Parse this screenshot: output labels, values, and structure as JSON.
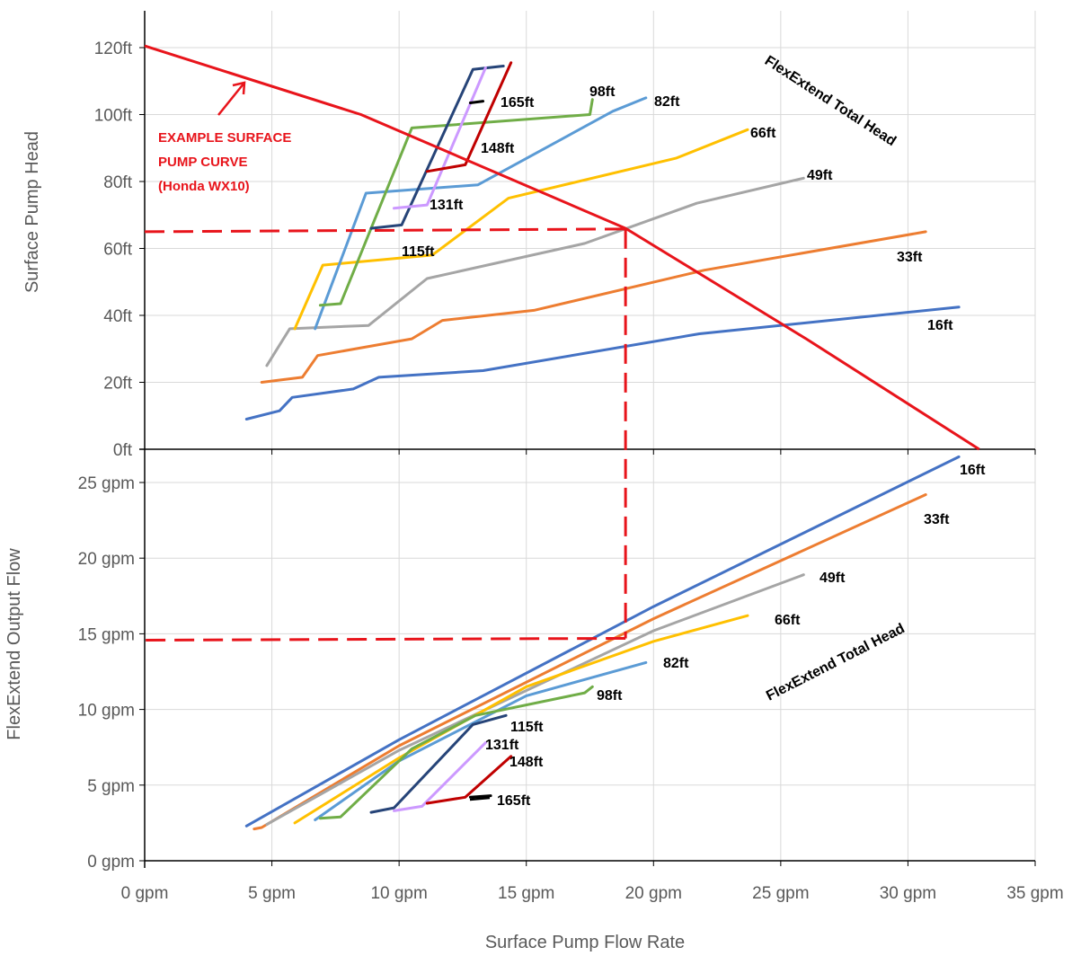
{
  "chart_data": [
    {
      "type": "line",
      "panel": "top",
      "xlabel": "",
      "ylabel": "Surface Pump Head",
      "xlim": [
        0,
        35
      ],
      "ylim": [
        0,
        120
      ],
      "y_ticks": [
        {
          "value": 0,
          "label": "0ft"
        },
        {
          "value": 20,
          "label": "20ft"
        },
        {
          "value": 40,
          "label": "40ft"
        },
        {
          "value": 60,
          "label": "60ft"
        },
        {
          "value": 80,
          "label": "80ft"
        },
        {
          "value": 100,
          "label": "100ft"
        },
        {
          "value": 120,
          "label": "120ft"
        }
      ],
      "grid": true,
      "series_title": "FlexExtend Total Head",
      "series": [
        {
          "name": "16ft",
          "color": "#4472c4",
          "points": [
            [
              4.0,
              9.0
            ],
            [
              5.3,
              11.5
            ],
            [
              5.8,
              15.5
            ],
            [
              8.2,
              18.0
            ],
            [
              9.2,
              21.5
            ],
            [
              13.3,
              23.5
            ],
            [
              21.8,
              34.5
            ],
            [
              32.0,
              42.5
            ]
          ]
        },
        {
          "name": "33ft",
          "color": "#ed7d31",
          "points": [
            [
              4.6,
              20.0
            ],
            [
              6.2,
              21.5
            ],
            [
              6.8,
              28.0
            ],
            [
              10.5,
              33.0
            ],
            [
              11.7,
              38.5
            ],
            [
              15.3,
              41.5
            ],
            [
              22.0,
              53.5
            ],
            [
              30.7,
              65.0
            ]
          ]
        },
        {
          "name": "49ft",
          "color": "#a5a5a5",
          "points": [
            [
              4.8,
              25.0
            ],
            [
              5.7,
              36.0
            ],
            [
              8.8,
              37.0
            ],
            [
              11.1,
              51.0
            ],
            [
              17.3,
              61.5
            ],
            [
              21.7,
              73.5
            ],
            [
              25.9,
              81.0
            ]
          ]
        },
        {
          "name": "66ft",
          "color": "#ffc000",
          "points": [
            [
              5.9,
              36.0
            ],
            [
              7.0,
              55.0
            ],
            [
              11.3,
              58.0
            ],
            [
              14.3,
              75.0
            ],
            [
              20.9,
              87.0
            ],
            [
              23.7,
              95.5
            ]
          ]
        },
        {
          "name": "82ft",
          "color": "#5b9bd5",
          "points": [
            [
              6.7,
              36.0
            ],
            [
              8.7,
              76.5
            ],
            [
              13.1,
              79.0
            ],
            [
              18.4,
              101.0
            ],
            [
              19.7,
              105.0
            ]
          ]
        },
        {
          "name": "98ft",
          "color": "#70ad47",
          "points": [
            [
              6.9,
              43.0
            ],
            [
              7.7,
              43.5
            ],
            [
              10.5,
              96.0
            ],
            [
              17.5,
              100.0
            ],
            [
              17.6,
              104.5
            ]
          ]
        },
        {
          "name": "115ft",
          "color": "#264478",
          "points": [
            [
              8.9,
              66.0
            ],
            [
              10.1,
              67.0
            ],
            [
              12.9,
              113.5
            ],
            [
              14.1,
              114.5
            ]
          ]
        },
        {
          "name": "131ft",
          "color": "#cc99ff",
          "points": [
            [
              9.8,
              72.0
            ],
            [
              11.1,
              73.0
            ],
            [
              13.4,
              114.0
            ]
          ]
        },
        {
          "name": "148ft",
          "color": "#c00000",
          "points": [
            [
              11.1,
              83.0
            ],
            [
              12.6,
              85.0
            ],
            [
              14.4,
              115.5
            ]
          ]
        },
        {
          "name": "165ft",
          "color": "#000000",
          "points": [
            [
              12.8,
              103.5
            ],
            [
              13.3,
              104.0
            ]
          ]
        }
      ],
      "pump_curve": {
        "label_lines": [
          "EXAMPLE SURFACE",
          "PUMP CURVE",
          "(Honda WX10)"
        ],
        "color": "#e8141b",
        "points": [
          [
            0,
            120.5
          ],
          [
            8.5,
            100.0
          ],
          [
            18.9,
            66.0
          ],
          [
            26.0,
            33.0
          ],
          [
            32.8,
            0.0
          ]
        ]
      },
      "operating_point": {
        "flow": 18.9,
        "head": 65,
        "output_flow": 14.7
      }
    },
    {
      "type": "line",
      "panel": "bottom",
      "xlabel": "Surface Pump Flow Rate",
      "ylabel": "FlexExtend Output Flow",
      "xlim": [
        0,
        35
      ],
      "ylim": [
        0,
        27
      ],
      "x_ticks": [
        {
          "value": 0,
          "label": "0 gpm"
        },
        {
          "value": 5,
          "label": "5 gpm"
        },
        {
          "value": 10,
          "label": "10 gpm"
        },
        {
          "value": 15,
          "label": "15 gpm"
        },
        {
          "value": 20,
          "label": "20 gpm"
        },
        {
          "value": 25,
          "label": "25 gpm"
        },
        {
          "value": 30,
          "label": "30 gpm"
        },
        {
          "value": 35,
          "label": "35 gpm"
        }
      ],
      "y_ticks": [
        {
          "value": 0,
          "label": "0 gpm"
        },
        {
          "value": 5,
          "label": "5 gpm"
        },
        {
          "value": 10,
          "label": "10 gpm"
        },
        {
          "value": 15,
          "label": "15 gpm"
        },
        {
          "value": 20,
          "label": "20 gpm"
        },
        {
          "value": 25,
          "label": "25 gpm"
        }
      ],
      "grid": true,
      "series_title": "FlexExtend Total Head",
      "series": [
        {
          "name": "16ft",
          "color": "#4472c4",
          "points": [
            [
              4.0,
              2.3
            ],
            [
              10,
              8.0
            ],
            [
              20,
              16.8
            ],
            [
              32.0,
              26.7
            ]
          ]
        },
        {
          "name": "33ft",
          "color": "#ed7d31",
          "points": [
            [
              4.3,
              2.1
            ],
            [
              4.6,
              2.2
            ],
            [
              10,
              7.6
            ],
            [
              20,
              16.0
            ],
            [
              30.7,
              24.2
            ]
          ]
        },
        {
          "name": "49ft",
          "color": "#a5a5a5",
          "points": [
            [
              4.8,
              2.4
            ],
            [
              10,
              7.3
            ],
            [
              20,
              15.2
            ],
            [
              25.9,
              18.9
            ]
          ]
        },
        {
          "name": "66ft",
          "color": "#ffc000",
          "points": [
            [
              5.9,
              2.5
            ],
            [
              10,
              6.8
            ],
            [
              15,
              11.5
            ],
            [
              20,
              14.5
            ],
            [
              23.7,
              16.2
            ]
          ]
        },
        {
          "name": "82ft",
          "color": "#5b9bd5",
          "points": [
            [
              6.7,
              2.7
            ],
            [
              10,
              6.6
            ],
            [
              15,
              10.9
            ],
            [
              19.7,
              13.1
            ]
          ]
        },
        {
          "name": "98ft",
          "color": "#70ad47",
          "points": [
            [
              6.9,
              2.8
            ],
            [
              7.7,
              2.9
            ],
            [
              10.5,
              7.4
            ],
            [
              13,
              9.6
            ],
            [
              17.3,
              11.1
            ],
            [
              17.6,
              11.5
            ]
          ]
        },
        {
          "name": "115ft",
          "color": "#264478",
          "points": [
            [
              8.9,
              3.2
            ],
            [
              9.8,
              3.5
            ],
            [
              12.9,
              9.0
            ],
            [
              14.2,
              9.6
            ]
          ]
        },
        {
          "name": "131ft",
          "color": "#cc99ff",
          "points": [
            [
              9.8,
              3.3
            ],
            [
              10.9,
              3.6
            ],
            [
              13.4,
              7.8
            ]
          ]
        },
        {
          "name": "148ft",
          "color": "#c00000",
          "points": [
            [
              11.1,
              3.8
            ],
            [
              12.6,
              4.2
            ],
            [
              14.4,
              6.9
            ]
          ]
        },
        {
          "name": "165ft",
          "color": "#000000",
          "points": [
            [
              12.8,
              4.2
            ],
            [
              13.6,
              4.3
            ]
          ]
        }
      ]
    }
  ]
}
